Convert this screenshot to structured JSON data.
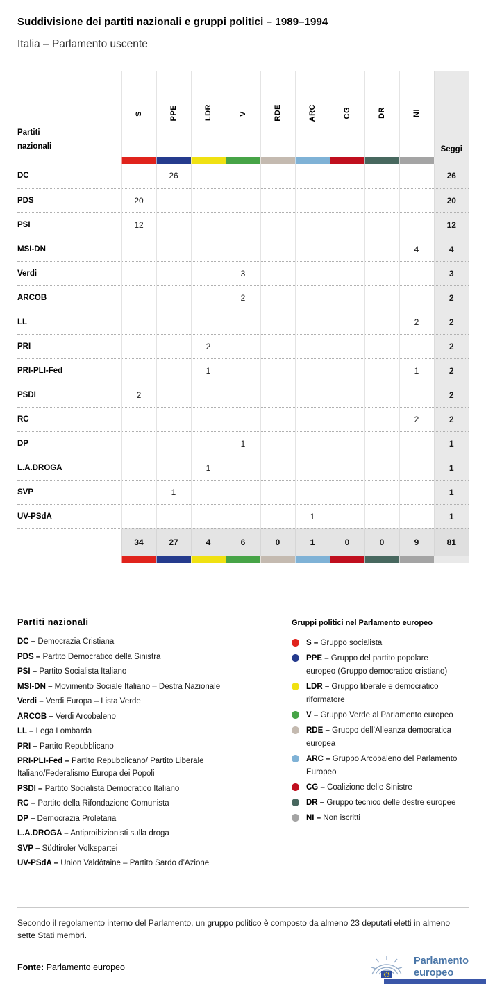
{
  "header": {
    "title": "Suddivisione dei partiti nazionali e gruppi politici – 1989–1994",
    "subtitle": "Italia – Parlamento uscente"
  },
  "chart_data": {
    "type": "table",
    "title": "Suddivisione dei partiti nazionali e gruppi politici – 1989–1994",
    "subtitle": "Italia – Parlamento uscente",
    "corner_label": "Partiti nazionali",
    "seats_label": "Seggi",
    "group_columns": [
      {
        "code": "S",
        "color": "#e0231c"
      },
      {
        "code": "PPE",
        "color": "#253b8d"
      },
      {
        "code": "LDR",
        "color": "#f0e112"
      },
      {
        "code": "V",
        "color": "#47a447"
      },
      {
        "code": "RDE",
        "color": "#c4bab0"
      },
      {
        "code": "ARC",
        "color": "#7fb2d6"
      },
      {
        "code": "CG",
        "color": "#c00f1e"
      },
      {
        "code": "DR",
        "color": "#48685f"
      },
      {
        "code": "NI",
        "color": "#a4a4a4"
      }
    ],
    "rows": [
      {
        "party": "DC",
        "values": [
          null,
          26,
          null,
          null,
          null,
          null,
          null,
          null,
          null
        ],
        "seats": 26
      },
      {
        "party": "PDS",
        "values": [
          20,
          null,
          null,
          null,
          null,
          null,
          null,
          null,
          null
        ],
        "seats": 20
      },
      {
        "party": "PSI",
        "values": [
          12,
          null,
          null,
          null,
          null,
          null,
          null,
          null,
          null
        ],
        "seats": 12
      },
      {
        "party": "MSI-DN",
        "values": [
          null,
          null,
          null,
          null,
          null,
          null,
          null,
          null,
          4
        ],
        "seats": 4
      },
      {
        "party": "Verdi",
        "values": [
          null,
          null,
          null,
          3,
          null,
          null,
          null,
          null,
          null
        ],
        "seats": 3
      },
      {
        "party": "ARCOB",
        "values": [
          null,
          null,
          null,
          2,
          null,
          null,
          null,
          null,
          null
        ],
        "seats": 2
      },
      {
        "party": "LL",
        "values": [
          null,
          null,
          null,
          null,
          null,
          null,
          null,
          null,
          2
        ],
        "seats": 2
      },
      {
        "party": "PRI",
        "values": [
          null,
          null,
          2,
          null,
          null,
          null,
          null,
          null,
          null
        ],
        "seats": 2
      },
      {
        "party": "PRI-PLI-Fed",
        "values": [
          null,
          null,
          1,
          null,
          null,
          null,
          null,
          null,
          1
        ],
        "seats": 2
      },
      {
        "party": "PSDI",
        "values": [
          2,
          null,
          null,
          null,
          null,
          null,
          null,
          null,
          null
        ],
        "seats": 2
      },
      {
        "party": "RC",
        "values": [
          null,
          null,
          null,
          null,
          null,
          null,
          null,
          null,
          2
        ],
        "seats": 2
      },
      {
        "party": "DP",
        "values": [
          null,
          null,
          null,
          1,
          null,
          null,
          null,
          null,
          null
        ],
        "seats": 1
      },
      {
        "party": "L.A.DROGA",
        "values": [
          null,
          null,
          1,
          null,
          null,
          null,
          null,
          null,
          null
        ],
        "seats": 1
      },
      {
        "party": "SVP",
        "values": [
          null,
          1,
          null,
          null,
          null,
          null,
          null,
          null,
          null
        ],
        "seats": 1
      },
      {
        "party": "UV-PSdA",
        "values": [
          null,
          null,
          null,
          null,
          null,
          1,
          null,
          null,
          null
        ],
        "seats": 1
      }
    ],
    "totals": {
      "values": [
        34,
        27,
        4,
        6,
        0,
        1,
        0,
        0,
        9
      ],
      "seats": 81
    }
  },
  "legend_parties": {
    "title": "Partiti nazionali",
    "items": [
      {
        "abbr": "DC",
        "name": "Democrazia Cristiana"
      },
      {
        "abbr": "PDS",
        "name": "Partito Democratico della Sinistra"
      },
      {
        "abbr": "PSI",
        "name": "Partito Socialista Italiano"
      },
      {
        "abbr": "MSI-DN",
        "name": "Movimento Sociale Italiano – Destra Nazionale"
      },
      {
        "abbr": "Verdi",
        "name": "Verdi Europa – Lista Verde"
      },
      {
        "abbr": "ARCOB",
        "name": "Verdi Arcobaleno"
      },
      {
        "abbr": "LL",
        "name": "Lega Lombarda"
      },
      {
        "abbr": "PRI",
        "name": "Partito Repubblicano"
      },
      {
        "abbr": "PRI-PLI-Fed",
        "name": "Partito Repubblicano/ Partito Liberale Italiano/Federalismo Europa dei Popoli"
      },
      {
        "abbr": "PSDI",
        "name": "Partito Socialista Democratico Italiano"
      },
      {
        "abbr": "RC",
        "name": "Partito della Rifondazione Comunista"
      },
      {
        "abbr": "DP",
        "name": "Democrazia Proletaria"
      },
      {
        "abbr": "L.A.DROGA",
        "name": "Antiproibizionisti sulla droga"
      },
      {
        "abbr": "SVP",
        "name": "Südtiroler Volkspartei"
      },
      {
        "abbr": "UV-PSdA",
        "name": "Union Valdôtaine – Partito Sardo d’Azione"
      }
    ]
  },
  "legend_groups": {
    "title": "Gruppi politici nel Parlamento europeo",
    "items": [
      {
        "abbr": "S",
        "name": "Gruppo socialista",
        "color": "#e0231c"
      },
      {
        "abbr": "PPE",
        "name": "Gruppo del partito popolare europeo (Gruppo democratico cristiano)",
        "color": "#253b8d"
      },
      {
        "abbr": "LDR",
        "name": "Gruppo liberale e democratico riformatore",
        "color": "#f0e112"
      },
      {
        "abbr": "V",
        "name": "Gruppo Verde al Parlamento europeo",
        "color": "#47a447"
      },
      {
        "abbr": "RDE",
        "name": "Gruppo dell’Alleanza democratica europea",
        "color": "#c4bab0"
      },
      {
        "abbr": "ARC",
        "name": "Gruppo Arcobaleno del Parlamento Europeo",
        "color": "#7fb2d6"
      },
      {
        "abbr": "CG",
        "name": "Coalizione delle Sinistre",
        "color": "#c00f1e"
      },
      {
        "abbr": "DR",
        "name": "Gruppo tecnico delle destre europee",
        "color": "#48685f"
      },
      {
        "abbr": "NI",
        "name": "Non iscritti",
        "color": "#a4a4a4"
      }
    ]
  },
  "note": "Secondo il regolamento interno del Parlamento, un gruppo politico è composto da almeno 23 deputati eletti in almeno sette Stati membri.",
  "footer": {
    "source_label": "Fonte:",
    "source_value": "Parlamento europeo",
    "logo_line1": "Parlamento",
    "logo_line2": "europeo"
  }
}
